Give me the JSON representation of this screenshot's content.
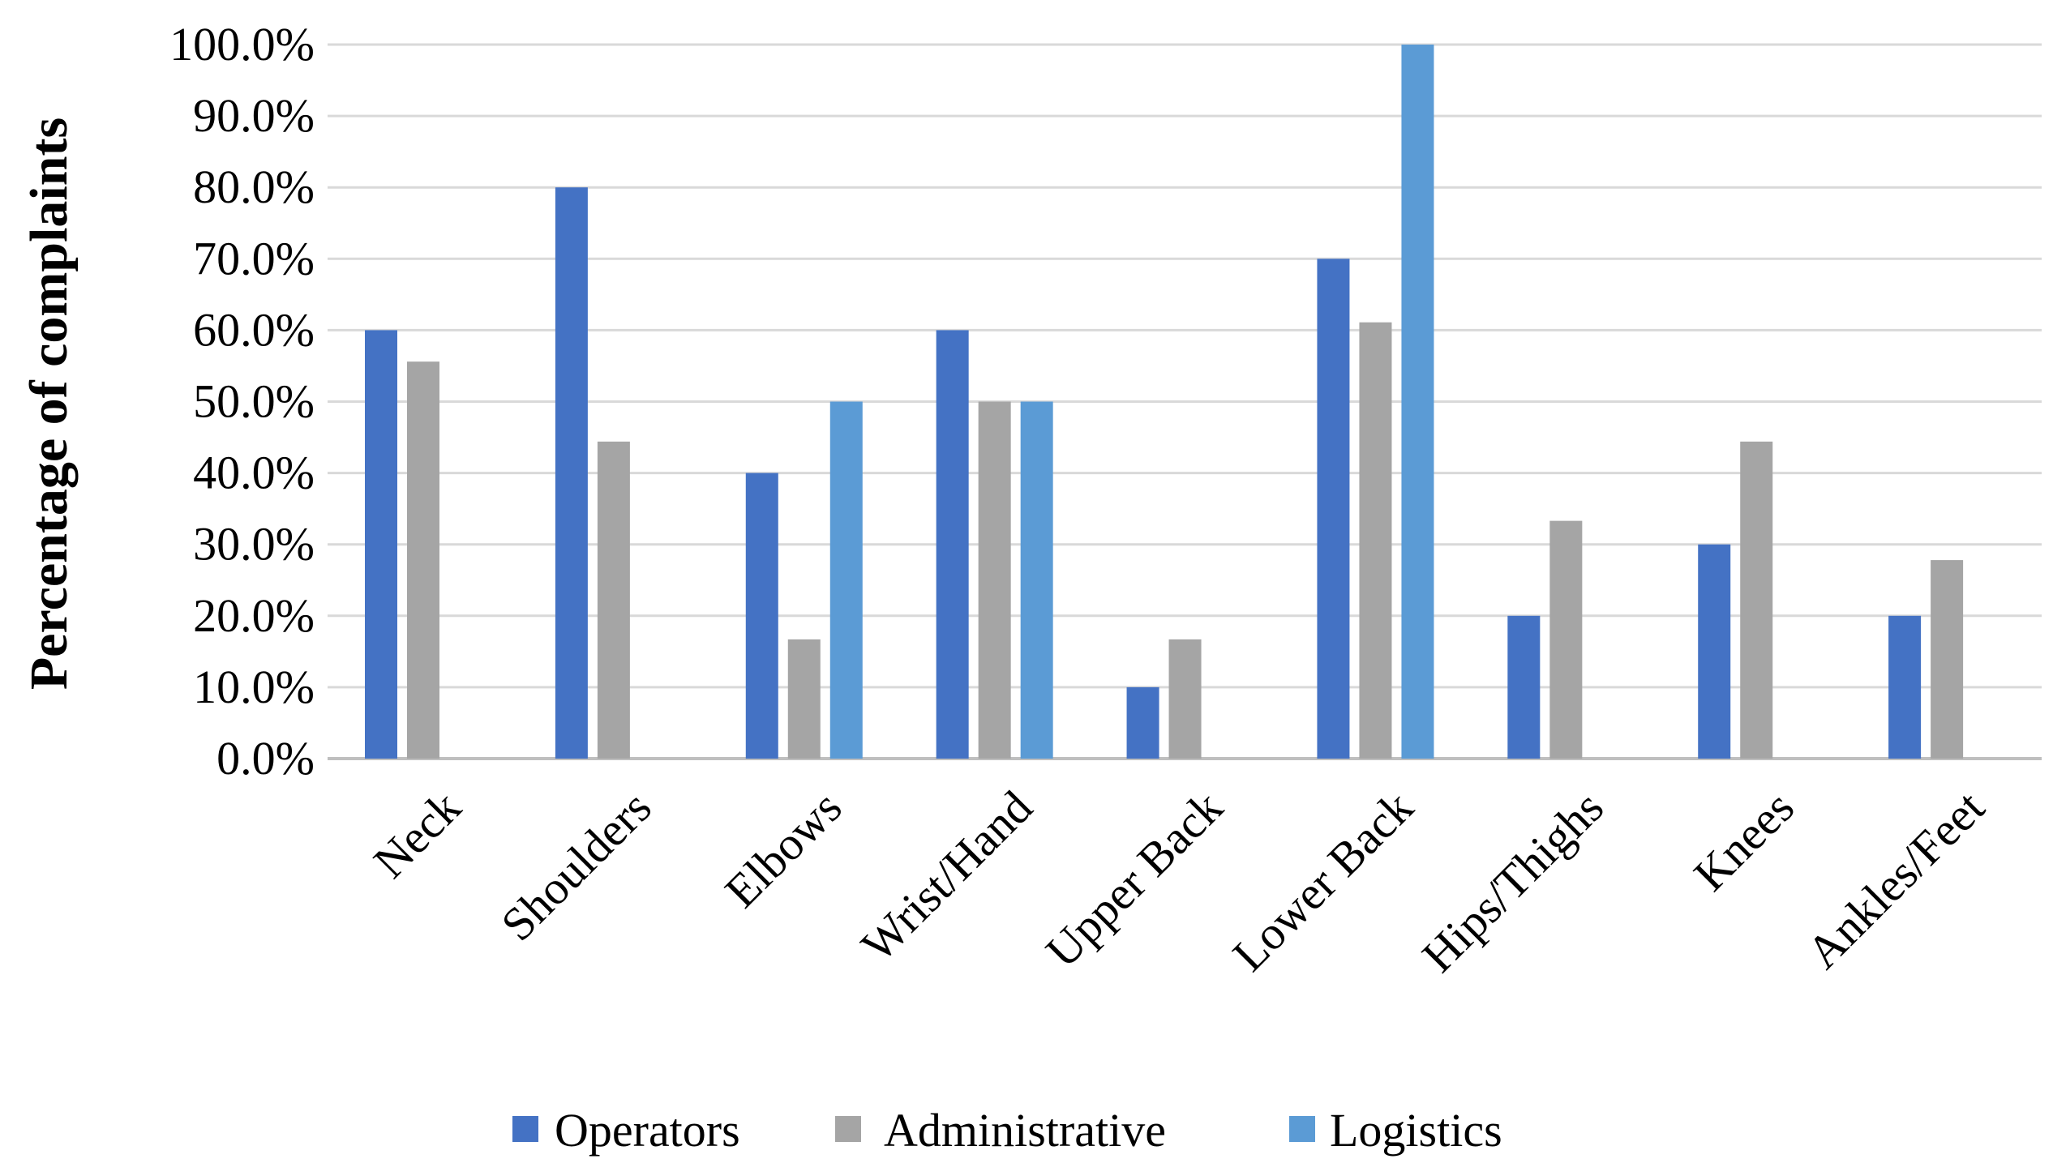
{
  "chart_data": {
    "type": "bar",
    "title": "",
    "xlabel": "",
    "ylabel": "Percentage of complaints",
    "ylim": [
      0,
      100
    ],
    "ytick_step": 10,
    "ytick_labels": [
      "0.0%",
      "10.0%",
      "20.0%",
      "30.0%",
      "40.0%",
      "50.0%",
      "60.0%",
      "70.0%",
      "80.0%",
      "90.0%",
      "100.0%"
    ],
    "grid": true,
    "legend_position": "bottom",
    "categories": [
      "Neck",
      "Shoulders",
      "Elbows",
      "Wrist/Hand",
      "Upper Back",
      "Lower Back",
      "Hips/Thighs",
      "Knees",
      "Ankles/Feet"
    ],
    "series": [
      {
        "name": "Operators",
        "color": "#4472C4",
        "values": [
          60,
          80,
          40,
          60,
          10,
          70,
          20,
          30,
          20
        ]
      },
      {
        "name": "Administrative",
        "color": "#A5A5A5",
        "values": [
          55.6,
          44.4,
          16.7,
          50,
          16.7,
          61.1,
          33.3,
          44.4,
          27.8
        ]
      },
      {
        "name": "Logistics",
        "color": "#5B9BD5",
        "values": [
          0,
          0,
          50,
          50,
          0,
          100,
          0,
          0,
          0
        ]
      }
    ]
  }
}
